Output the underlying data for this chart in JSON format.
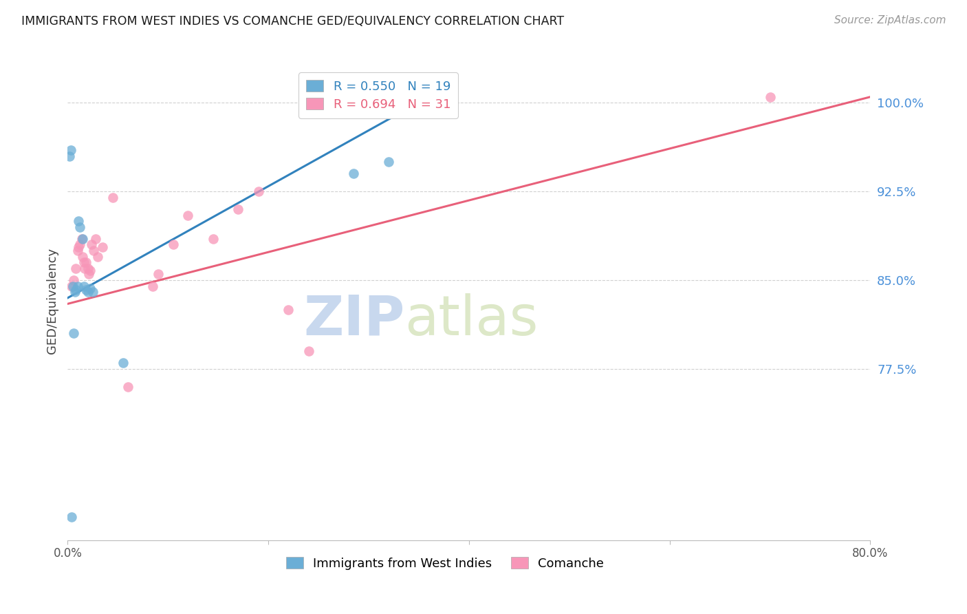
{
  "title": "IMMIGRANTS FROM WEST INDIES VS COMANCHE GED/EQUIVALENCY CORRELATION CHART",
  "source": "Source: ZipAtlas.com",
  "xlabel": "",
  "ylabel": "GED/Equivalency",
  "legend_label_1": "Immigrants from West Indies",
  "legend_label_2": "Comanche",
  "R1": 0.55,
  "N1": 19,
  "R2": 0.694,
  "N2": 31,
  "color1": "#6baed6",
  "color2": "#f796b8",
  "line_color1": "#3182bd",
  "line_color2": "#e8607a",
  "xlim": [
    0.0,
    80.0
  ],
  "ylim": [
    63.0,
    103.5
  ],
  "yticks": [
    77.5,
    85.0,
    92.5,
    100.0
  ],
  "ytick_labels": [
    "77.5%",
    "85.0%",
    "92.5%",
    "100.0%"
  ],
  "xticks": [
    0.0,
    20.0,
    40.0,
    60.0,
    80.0
  ],
  "xtick_labels": [
    "0.0%",
    "",
    "",
    "",
    "80.0%"
  ],
  "scatter_x1": [
    0.2,
    0.3,
    0.5,
    0.7,
    0.8,
    1.0,
    1.1,
    1.2,
    1.5,
    1.6,
    1.8,
    2.0,
    2.2,
    2.5,
    5.5,
    28.5,
    32.0,
    0.4,
    0.6
  ],
  "scatter_y1": [
    95.5,
    96.0,
    84.5,
    84.0,
    84.2,
    84.5,
    90.0,
    89.5,
    88.5,
    84.5,
    84.2,
    84.0,
    84.3,
    84.0,
    78.0,
    94.0,
    95.0,
    65.0,
    80.5
  ],
  "scatter_x2": [
    0.4,
    0.6,
    0.8,
    1.0,
    1.1,
    1.2,
    1.4,
    1.5,
    1.6,
    1.7,
    1.8,
    2.0,
    2.1,
    2.2,
    2.4,
    2.6,
    2.8,
    3.0,
    3.5,
    4.5,
    8.5,
    10.5,
    12.0,
    14.5,
    22.0,
    24.0,
    9.0,
    17.0,
    19.0,
    6.0,
    70.0
  ],
  "scatter_y2": [
    84.5,
    85.0,
    86.0,
    87.5,
    87.8,
    88.0,
    88.5,
    87.0,
    86.5,
    86.0,
    86.5,
    86.0,
    85.5,
    85.8,
    88.0,
    87.5,
    88.5,
    87.0,
    87.8,
    92.0,
    84.5,
    88.0,
    90.5,
    88.5,
    82.5,
    79.0,
    85.5,
    91.0,
    92.5,
    76.0,
    100.5
  ],
  "line1_x": [
    0.0,
    36.0
  ],
  "line1_y": [
    83.5,
    100.5
  ],
  "line2_x": [
    0.0,
    80.0
  ],
  "line2_y": [
    83.0,
    100.5
  ],
  "watermark_zip": "ZIP",
  "watermark_atlas": "atlas",
  "background_color": "#ffffff",
  "grid_color": "#d0d0d0"
}
